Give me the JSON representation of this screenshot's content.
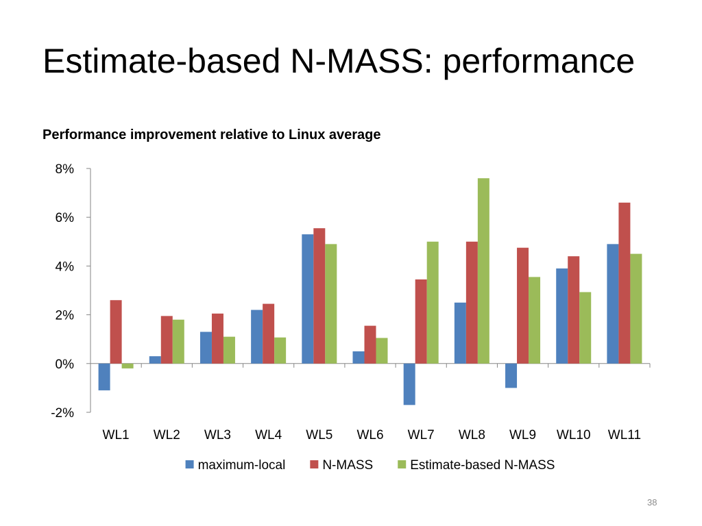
{
  "slide": {
    "title": "Estimate-based N-MASS: performance",
    "page_number": "38"
  },
  "chart_data": {
    "type": "bar",
    "title": "Performance improvement relative to Linux average",
    "xlabel": "",
    "ylabel": "",
    "categories": [
      "WL1",
      "WL2",
      "WL3",
      "WL4",
      "WL5",
      "WL6",
      "WL7",
      "WL8",
      "WL9",
      "WL10",
      "WL11"
    ],
    "series": [
      {
        "name": "maximum-local",
        "color": "#4F81BD",
        "values": [
          -1.1,
          0.3,
          1.3,
          2.2,
          5.3,
          0.5,
          -1.7,
          2.5,
          -1.0,
          3.9,
          4.9
        ]
      },
      {
        "name": "N-MASS",
        "color": "#C0504D",
        "values": [
          2.6,
          1.95,
          2.05,
          2.45,
          5.55,
          1.55,
          3.45,
          5.0,
          4.75,
          4.4,
          6.6
        ]
      },
      {
        "name": "Estimate-based N-MASS",
        "color": "#9BBB59",
        "values": [
          -0.2,
          1.8,
          1.1,
          1.07,
          4.9,
          1.05,
          5.0,
          7.6,
          3.55,
          2.93,
          4.5
        ]
      }
    ],
    "ylim": [
      -2,
      8
    ],
    "yticks": [
      -2,
      0,
      2,
      4,
      6,
      8
    ],
    "ytick_format": "percent",
    "grid": false,
    "legend_position": "bottom"
  }
}
